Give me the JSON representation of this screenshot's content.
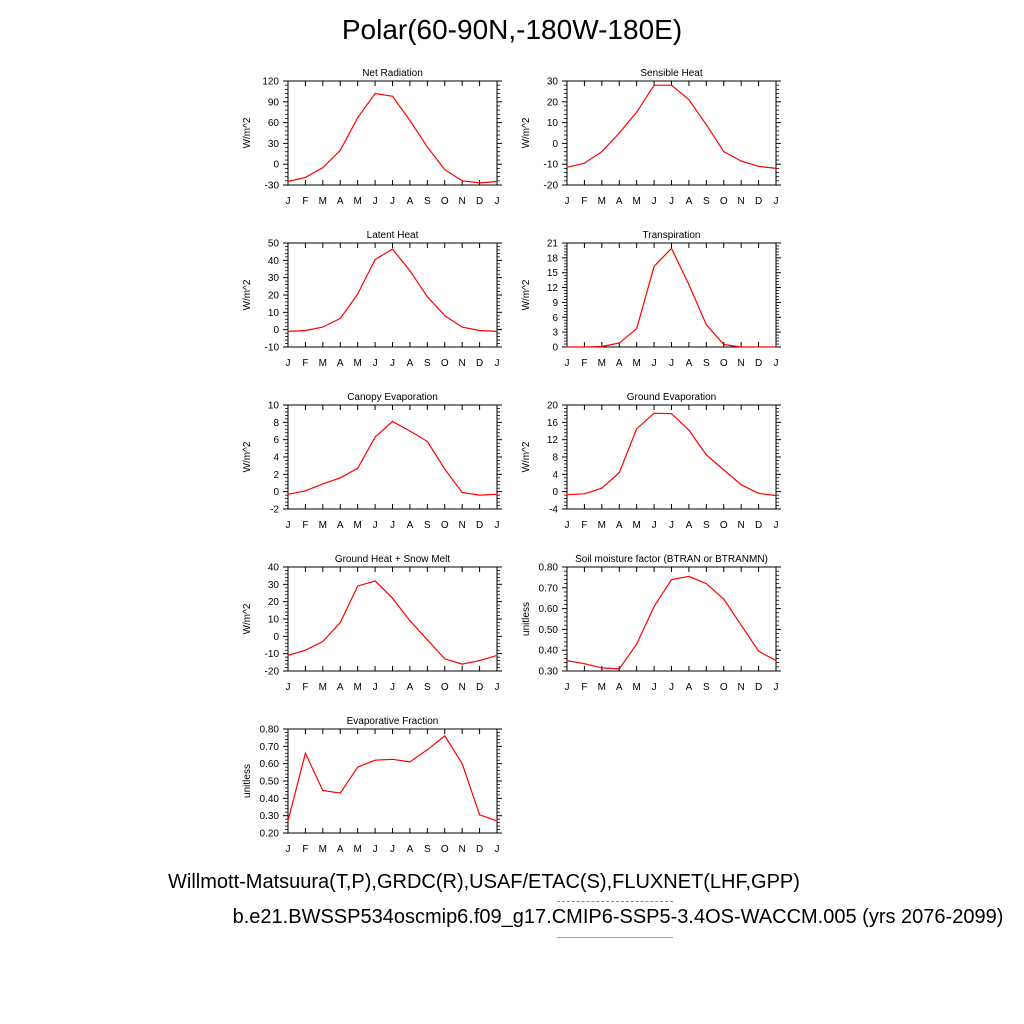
{
  "page": {
    "title": "Polar(60-90N,-180W-180E)",
    "legend_line_1": "Willmott-Matsuura(T,P),GRDC(R),USAF/ETAC(S),FLUXNET(LHF,GPP)",
    "legend_line_2": "b.e21.BWSSP534oscmip6.f09_g17.CMIP6-SSP5-3.4OS-WACCM.005 (yrs 2076-2099)",
    "colors": {
      "model": "#ff0000",
      "observations": "#7b7bf5",
      "model_legend": "#f08080"
    }
  },
  "chart_data": [
    {
      "type": "line",
      "title": "Net Radiation",
      "ylabel": "W/m^2",
      "x": [
        "J",
        "F",
        "M",
        "A",
        "M",
        "J",
        "J",
        "A",
        "S",
        "O",
        "N",
        "D",
        "J"
      ],
      "ylim": [
        -30,
        120
      ],
      "yticks": [
        "120",
        "90",
        "60",
        "30",
        "0",
        "-30"
      ],
      "series": [
        {
          "values": [
            -25,
            -19,
            -5,
            20,
            67,
            102,
            98,
            63,
            25,
            -8,
            -24,
            -27,
            -25
          ]
        }
      ]
    },
    {
      "type": "line",
      "title": "Sensible Heat",
      "ylabel": "W/m^2",
      "x": [
        "J",
        "F",
        "M",
        "A",
        "M",
        "J",
        "J",
        "A",
        "S",
        "O",
        "N",
        "D",
        "J"
      ],
      "ylim": [
        -20,
        30
      ],
      "yticks": [
        "30",
        "20",
        "10",
        "0",
        "-10",
        "-20"
      ],
      "series": [
        {
          "values": [
            -11.5,
            -9.5,
            -4,
            5,
            15,
            28,
            28,
            21,
            9,
            -4,
            -8.5,
            -11,
            -12
          ]
        }
      ]
    },
    {
      "type": "line",
      "title": "Latent Heat",
      "ylabel": "W/m^2",
      "x": [
        "J",
        "F",
        "M",
        "A",
        "M",
        "J",
        "J",
        "A",
        "S",
        "O",
        "N",
        "D",
        "J"
      ],
      "ylim": [
        -10,
        50
      ],
      "yticks": [
        "50",
        "40",
        "30",
        "20",
        "10",
        "0",
        "-10"
      ],
      "series": [
        {
          "values": [
            -1,
            -0.5,
            1.5,
            6.5,
            20.5,
            40.5,
            46.5,
            34,
            19,
            8,
            1.5,
            -0.5,
            -1
          ]
        }
      ]
    },
    {
      "type": "line",
      "title": "Transpiration",
      "ylabel": "W/m^2",
      "x": [
        "J",
        "F",
        "M",
        "A",
        "M",
        "J",
        "J",
        "A",
        "S",
        "O",
        "N",
        "D",
        "J"
      ],
      "ylim": [
        0,
        21
      ],
      "yticks": [
        "21",
        "18",
        "15",
        "12",
        "9",
        "6",
        "3",
        "0"
      ],
      "series": [
        {
          "values": [
            0,
            0,
            0.1,
            0.8,
            3.7,
            16.3,
            19.9,
            12.6,
            4.5,
            0.5,
            0,
            0,
            0
          ]
        }
      ]
    },
    {
      "type": "line",
      "title": "Canopy Evaporation",
      "ylabel": "W/m^2",
      "x": [
        "J",
        "F",
        "M",
        "A",
        "M",
        "J",
        "J",
        "A",
        "S",
        "O",
        "N",
        "D",
        "J"
      ],
      "ylim": [
        -2,
        10
      ],
      "yticks": [
        "10",
        "8",
        "6",
        "4",
        "2",
        "0",
        "-2"
      ],
      "series": [
        {
          "values": [
            -0.3,
            0.1,
            0.9,
            1.6,
            2.7,
            6.3,
            8.1,
            7.0,
            5.8,
            2.6,
            -0.1,
            -0.4,
            -0.3
          ]
        }
      ]
    },
    {
      "type": "line",
      "title": "Ground Evaporation",
      "ylabel": "W/m^2",
      "x": [
        "J",
        "F",
        "M",
        "A",
        "M",
        "J",
        "J",
        "A",
        "S",
        "O",
        "N",
        "D",
        "J"
      ],
      "ylim": [
        -4,
        20
      ],
      "yticks": [
        "20",
        "16",
        "12",
        "8",
        "4",
        "0",
        "-4"
      ],
      "series": [
        {
          "values": [
            -0.7,
            -0.5,
            0.8,
            4.4,
            14.5,
            18.1,
            18.0,
            14.2,
            8.5,
            5.0,
            1.6,
            -0.4,
            -0.9
          ]
        }
      ]
    },
    {
      "type": "line",
      "title": "Ground Heat + Snow Melt",
      "ylabel": "W/m^2",
      "x": [
        "J",
        "F",
        "M",
        "A",
        "M",
        "J",
        "J",
        "A",
        "S",
        "O",
        "N",
        "D",
        "J"
      ],
      "ylim": [
        -20,
        40
      ],
      "yticks": [
        "40",
        "30",
        "20",
        "10",
        "0",
        "-10",
        "-20"
      ],
      "series": [
        {
          "values": [
            -11,
            -8,
            -3,
            8,
            29,
            32,
            22,
            9,
            -2,
            -13,
            -16,
            -14,
            -11
          ]
        }
      ]
    },
    {
      "type": "line",
      "title": "Soil moisture factor (BTRAN or BTRANMN)",
      "ylabel": "unitless",
      "x": [
        "J",
        "F",
        "M",
        "A",
        "M",
        "J",
        "J",
        "A",
        "S",
        "O",
        "N",
        "D",
        "J"
      ],
      "ylim": [
        0.3,
        0.8
      ],
      "yticks": [
        "0.80",
        "0.70",
        "0.60",
        "0.50",
        "0.40",
        "0.30"
      ],
      "series": [
        {
          "values": [
            0.35,
            0.335,
            0.315,
            0.31,
            0.43,
            0.61,
            0.74,
            0.755,
            0.72,
            0.645,
            0.52,
            0.395,
            0.35
          ]
        }
      ]
    },
    {
      "type": "line",
      "title": "Evaporative Fraction",
      "ylabel": "unitless",
      "x": [
        "J",
        "F",
        "M",
        "A",
        "M",
        "J",
        "J",
        "A",
        "S",
        "O",
        "N",
        "D",
        "J"
      ],
      "ylim": [
        0.2,
        0.8
      ],
      "yticks": [
        "0.80",
        "0.70",
        "0.60",
        "0.50",
        "0.40",
        "0.30",
        "0.20"
      ],
      "series": [
        {
          "values": [
            0.27,
            0.66,
            0.445,
            0.43,
            0.58,
            0.62,
            0.625,
            0.61,
            0.68,
            0.76,
            0.6,
            0.305,
            0.27
          ]
        }
      ]
    }
  ]
}
